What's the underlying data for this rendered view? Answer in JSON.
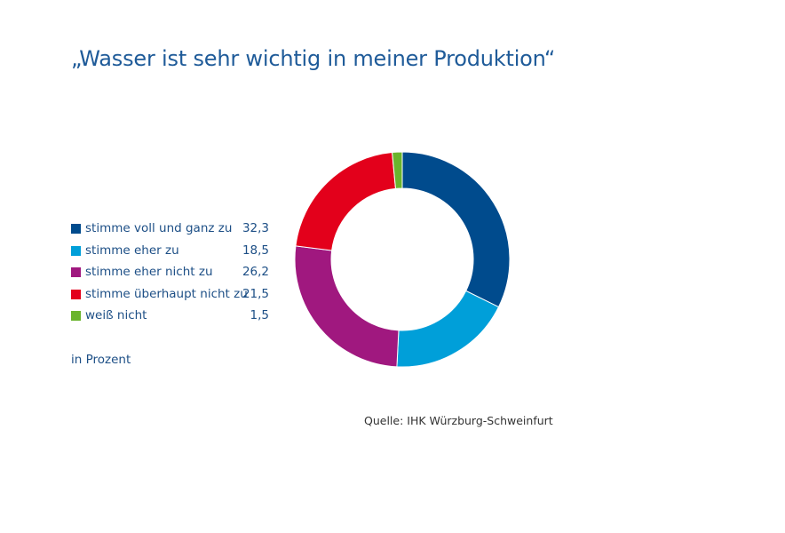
{
  "chart_data": {
    "type": "pie",
    "title": "„Wasser ist sehr wichtig in meiner Produktion“",
    "unit_label": "in Prozent",
    "source": "Quelle: IHK Würzburg-Schweinfurt",
    "legend_position": "left",
    "slices": [
      {
        "label": "stimme voll und ganz zu",
        "value": 32.3,
        "value_text": "32,3",
        "color": "#004b8d"
      },
      {
        "label": "stimme eher zu",
        "value": 18.5,
        "value_text": "18,5",
        "color": "#009fd9"
      },
      {
        "label": "stimme eher nicht zu",
        "value": 26.2,
        "value_text": "26,2",
        "color": "#a0187f"
      },
      {
        "label": "stimme überhaupt nicht zu",
        "value": 21.5,
        "value_text": "21,5",
        "color": "#e3001b"
      },
      {
        "label": "weiß nicht",
        "value": 1.5,
        "value_text": "1,5",
        "color": "#6ab42d"
      }
    ]
  }
}
